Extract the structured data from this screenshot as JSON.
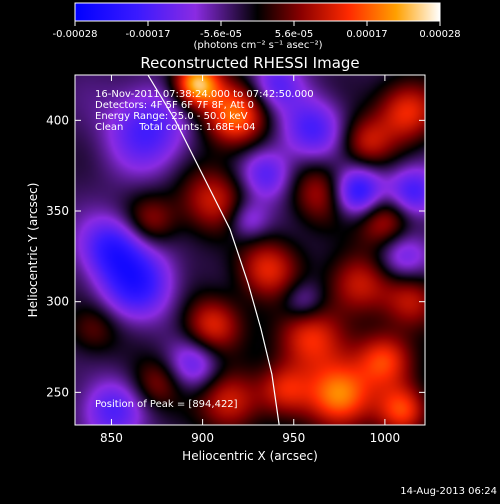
{
  "chart_data": {
    "type": "heatmap",
    "title": "Reconstructed RHESSI Image",
    "xlabel": "Heliocentric X (arcsec)",
    "ylabel": "Heliocentric Y (arcsec)",
    "xlim": [
      830,
      1022
    ],
    "ylim": [
      232,
      425
    ],
    "x_ticks": [
      850,
      900,
      950,
      1000
    ],
    "y_ticks": [
      250,
      300,
      350,
      400
    ],
    "colorbar": {
      "ticks": [
        "-0.00028",
        "-0.00017",
        "-5.6e-05",
        "5.6e-05",
        "0.00017",
        "0.00028"
      ],
      "unit_label": "(photons cm⁻² s⁻¹ asec⁻²)",
      "range": [
        -0.00028,
        0.00028
      ]
    },
    "annotations": [
      "16-Nov-2011 07:38:24.000 to 07:42:50.000",
      "Detectors: 4F 5F 6F 7F 8F, Att 0",
      "Energy Range: 25.0 - 50.0 keV",
      "Clean     Total counts: 1.68E+04"
    ],
    "peak_text": "Position of Peak = [894,422]",
    "peak_position": [
      894,
      422
    ],
    "limb_arc": [
      [
        870,
        425
      ],
      [
        885,
        400
      ],
      [
        900,
        370
      ],
      [
        915,
        340
      ],
      [
        925,
        310
      ],
      [
        932,
        285
      ],
      [
        938,
        260
      ],
      [
        942,
        232
      ]
    ],
    "blobs": [
      {
        "x": 897,
        "y": 420,
        "amp": 1.0,
        "s": 9
      },
      {
        "x": 918,
        "y": 402,
        "amp": 0.75,
        "s": 12
      },
      {
        "x": 1012,
        "y": 405,
        "amp": 0.6,
        "s": 12
      },
      {
        "x": 990,
        "y": 388,
        "amp": 0.45,
        "s": 10
      },
      {
        "x": 965,
        "y": 360,
        "amp": 0.45,
        "s": 12
      },
      {
        "x": 905,
        "y": 356,
        "amp": 0.5,
        "s": 13
      },
      {
        "x": 872,
        "y": 345,
        "amp": 0.35,
        "s": 10
      },
      {
        "x": 1000,
        "y": 345,
        "amp": 0.55,
        "s": 11
      },
      {
        "x": 935,
        "y": 318,
        "amp": 0.55,
        "s": 12
      },
      {
        "x": 985,
        "y": 310,
        "amp": 0.5,
        "s": 12
      },
      {
        "x": 1015,
        "y": 300,
        "amp": 0.45,
        "s": 11
      },
      {
        "x": 905,
        "y": 287,
        "amp": 0.55,
        "s": 11
      },
      {
        "x": 958,
        "y": 280,
        "amp": 0.6,
        "s": 13
      },
      {
        "x": 1000,
        "y": 268,
        "amp": 0.65,
        "s": 11
      },
      {
        "x": 975,
        "y": 248,
        "amp": 0.85,
        "s": 13
      },
      {
        "x": 1010,
        "y": 240,
        "amp": 0.6,
        "s": 10
      },
      {
        "x": 915,
        "y": 245,
        "amp": 0.55,
        "s": 12
      },
      {
        "x": 875,
        "y": 255,
        "amp": 0.35,
        "s": 10
      },
      {
        "x": 945,
        "y": 252,
        "amp": 0.45,
        "s": 10
      },
      {
        "x": 840,
        "y": 285,
        "amp": 0.3,
        "s": 10
      },
      {
        "x": 864,
        "y": 310,
        "amp": -0.6,
        "s": 14
      },
      {
        "x": 850,
        "y": 330,
        "amp": -0.55,
        "s": 12
      },
      {
        "x": 985,
        "y": 360,
        "amp": -0.75,
        "s": 10
      },
      {
        "x": 960,
        "y": 395,
        "amp": -0.5,
        "s": 12
      },
      {
        "x": 870,
        "y": 395,
        "amp": -0.5,
        "s": 16
      },
      {
        "x": 935,
        "y": 370,
        "amp": -0.45,
        "s": 10
      },
      {
        "x": 925,
        "y": 345,
        "amp": -0.35,
        "s": 8
      },
      {
        "x": 1015,
        "y": 360,
        "amp": -0.55,
        "s": 10
      },
      {
        "x": 895,
        "y": 265,
        "amp": -0.4,
        "s": 10
      },
      {
        "x": 1010,
        "y": 325,
        "amp": -0.4,
        "s": 10
      },
      {
        "x": 955,
        "y": 300,
        "amp": -0.3,
        "s": 8
      },
      {
        "x": 850,
        "y": 240,
        "amp": -0.45,
        "s": 12
      },
      {
        "x": 940,
        "y": 420,
        "amp": -0.4,
        "s": 10
      }
    ]
  },
  "footer": {
    "timestamp": "14-Aug-2013 06:24"
  }
}
